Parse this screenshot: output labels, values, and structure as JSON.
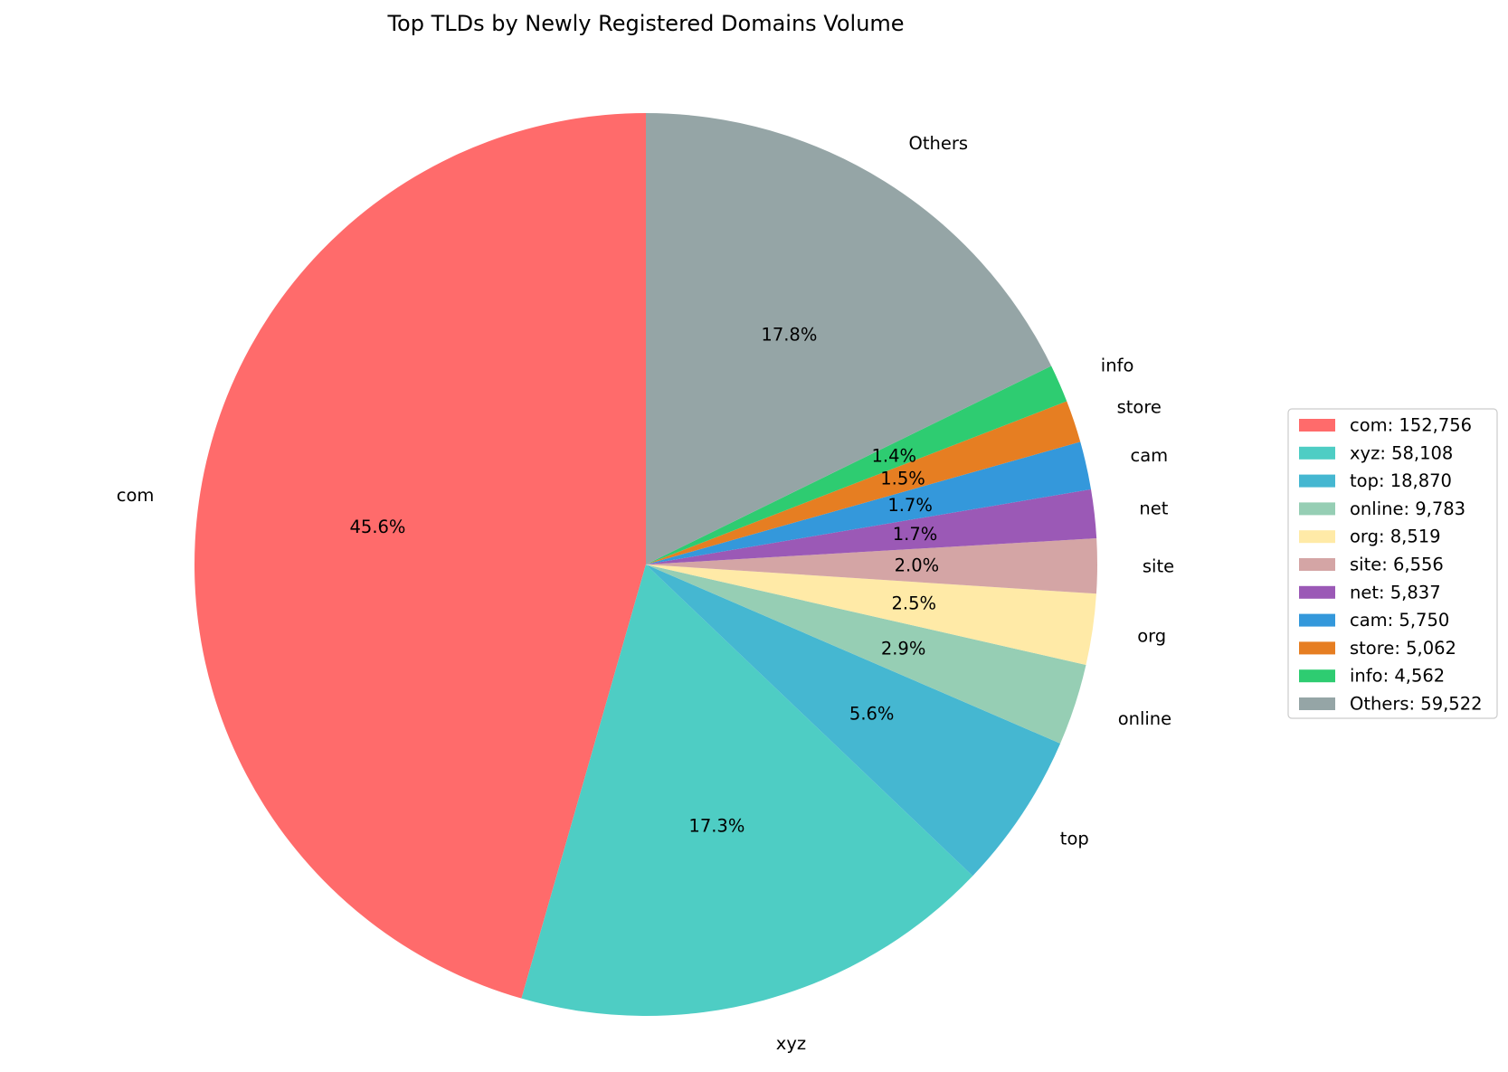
{
  "chart_data": {
    "type": "pie",
    "title": "Top TLDs by Newly Registered Domains Volume",
    "start_angle_deg": 90,
    "direction": "counterclockwise",
    "legend_position": "right",
    "slices": [
      {
        "label": "com",
        "value": 152756,
        "pct_label": "45.6%",
        "legend": "com: 152,756",
        "color": "#ff6b6b"
      },
      {
        "label": "xyz",
        "value": 58108,
        "pct_label": "17.3%",
        "legend": "xyz: 58,108",
        "color": "#4ecdc4"
      },
      {
        "label": "top",
        "value": 18870,
        "pct_label": "5.6%",
        "legend": "top: 18,870",
        "color": "#45b7d1"
      },
      {
        "label": "online",
        "value": 9783,
        "pct_label": "2.9%",
        "legend": "online: 9,783",
        "color": "#96ceb4"
      },
      {
        "label": "org",
        "value": 8519,
        "pct_label": "2.5%",
        "legend": "org: 8,519",
        "color": "#ffeaa7"
      },
      {
        "label": "site",
        "value": 6556,
        "pct_label": "2.0%",
        "legend": "site: 6,556",
        "color": "#d4a5a5"
      },
      {
        "label": "net",
        "value": 5837,
        "pct_label": "1.7%",
        "legend": "net: 5,837",
        "color": "#9b59b6"
      },
      {
        "label": "cam",
        "value": 5750,
        "pct_label": "1.7%",
        "legend": "cam: 5,750",
        "color": "#3498db"
      },
      {
        "label": "store",
        "value": 5062,
        "pct_label": "1.5%",
        "legend": "store: 5,062",
        "color": "#e67e22"
      },
      {
        "label": "info",
        "value": 4562,
        "pct_label": "1.4%",
        "legend": "info: 4,562",
        "color": "#2ecc71"
      },
      {
        "label": "Others",
        "value": 59522,
        "pct_label": "17.8%",
        "legend": "Others: 59,522",
        "color": "#95a5a6"
      }
    ]
  }
}
